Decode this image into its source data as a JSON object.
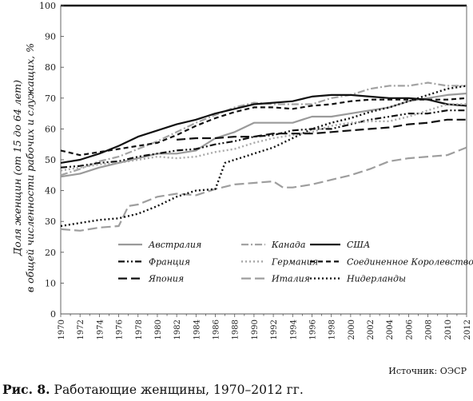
{
  "figure": {
    "caption_prefix": "Рис. 8.",
    "caption_text": "Работающие женщины, 1970–2012 гг.",
    "source": "Источник: ОЭСР"
  },
  "chart_data": {
    "type": "line",
    "ylabel_line1": "Доля женщин (от 15 до 64 лет)",
    "ylabel_line2": "в общей численности рабочих и служащих, %",
    "xlim": [
      1970,
      2012
    ],
    "ylim": [
      0,
      100
    ],
    "yticks": [
      0,
      10,
      20,
      30,
      40,
      50,
      60,
      70,
      80,
      90,
      100
    ],
    "xticks": [
      1970,
      1972,
      1974,
      1976,
      1978,
      1980,
      1982,
      1984,
      1986,
      1988,
      1990,
      1992,
      1994,
      1996,
      1998,
      2000,
      2002,
      2004,
      2006,
      2008,
      2010,
      2012
    ],
    "legend_position": "lower-center",
    "series": [
      {
        "name": "Австралия",
        "style": "solid-gray",
        "x": [
          1970,
          1972,
          1974,
          1976,
          1978,
          1980,
          1982,
          1984,
          1986,
          1988,
          1990,
          1992,
          1994,
          1996,
          1998,
          2000,
          2002,
          2004,
          2006,
          2008,
          2010,
          2012
        ],
        "y": [
          44.5,
          45.5,
          47.5,
          49,
          50.5,
          52,
          52,
          53,
          57,
          59,
          62,
          62,
          62,
          64,
          64,
          65,
          66,
          67,
          69,
          70,
          71,
          71.5
        ]
      },
      {
        "name": "Канада",
        "style": "dashdot-gray",
        "x": [
          1970,
          1972,
          1974,
          1976,
          1978,
          1980,
          1982,
          1984,
          1986,
          1988,
          1990,
          1992,
          1994,
          1996,
          1998,
          2000,
          2002,
          2004,
          2006,
          2008,
          2010,
          2012
        ],
        "y": [
          45,
          47,
          49.5,
          51,
          53.5,
          56,
          59,
          62,
          64.5,
          67,
          68.5,
          68,
          68,
          68,
          70,
          71,
          73,
          74,
          74,
          75,
          74,
          74
        ]
      },
      {
        "name": "США",
        "style": "solid-black",
        "x": [
          1970,
          1972,
          1974,
          1976,
          1978,
          1980,
          1982,
          1984,
          1986,
          1988,
          1990,
          1992,
          1994,
          1996,
          1998,
          2000,
          2002,
          2004,
          2006,
          2008,
          2010,
          2012
        ],
        "y": [
          49,
          50,
          52,
          54.5,
          57.5,
          59.5,
          61.5,
          63,
          65,
          66.5,
          68,
          68.5,
          69,
          70.5,
          71,
          71,
          70.5,
          70,
          70,
          69.5,
          68,
          67.5
        ]
      },
      {
        "name": "Франция",
        "style": "dashdotdot-black",
        "x": [
          1970,
          1972,
          1974,
          1976,
          1978,
          1980,
          1982,
          1984,
          1986,
          1988,
          1990,
          1992,
          1994,
          1996,
          1998,
          2000,
          2002,
          2004,
          2006,
          2008,
          2010,
          2012
        ],
        "y": [
          47.5,
          48,
          49,
          49.5,
          51,
          52,
          53,
          53.5,
          55,
          56,
          57.5,
          58,
          59.5,
          60,
          60,
          61.5,
          63,
          64,
          65,
          65,
          66,
          66
        ]
      },
      {
        "name": "Германия",
        "style": "dotted-gray",
        "x": [
          1970,
          1972,
          1974,
          1976,
          1978,
          1980,
          1982,
          1984,
          1986,
          1988,
          1990,
          1992,
          1994,
          1996,
          1998,
          2000,
          2002,
          2004,
          2006,
          2008,
          2010,
          2012
        ],
        "y": [
          46.5,
          47.5,
          48.5,
          49,
          50,
          51,
          50.5,
          51,
          52.5,
          53.5,
          55.5,
          57,
          58,
          59,
          61,
          62,
          62.5,
          62.5,
          64,
          66,
          68,
          68
        ]
      },
      {
        "name": "Соединенное Королевство",
        "style": "dashed-black",
        "x": [
          1970,
          1972,
          1974,
          1976,
          1978,
          1980,
          1982,
          1984,
          1986,
          1988,
          1990,
          1992,
          1994,
          1996,
          1998,
          2000,
          2002,
          2004,
          2006,
          2008,
          2010,
          2012
        ],
        "y": [
          53,
          51.5,
          52.5,
          53.5,
          54.5,
          55.5,
          58,
          61,
          63.5,
          65.5,
          67,
          67,
          66.5,
          67.5,
          68,
          69,
          69.5,
          69.5,
          69.5,
          69.5,
          69.5,
          70
        ]
      },
      {
        "name": "Япония",
        "style": "longdash-black",
        "x": [
          1982,
          1984,
          1986,
          1988,
          1990,
          1992,
          1994,
          1996,
          1998,
          2000,
          2002,
          2004,
          2006,
          2008,
          2010,
          2012
        ],
        "y": [
          56.5,
          57,
          57,
          57.5,
          57.5,
          58.5,
          58.5,
          58.5,
          59,
          59.5,
          60,
          60.5,
          61.5,
          62,
          63,
          63
        ]
      },
      {
        "name": "Италия",
        "style": "longdash-gray",
        "x": [
          1970,
          1972,
          1974,
          1976,
          1977,
          1978,
          1980,
          1982,
          1984,
          1986,
          1988,
          1990,
          1992,
          1993,
          1994,
          1996,
          1998,
          2000,
          2002,
          2004,
          2006,
          2008,
          2010,
          2012
        ],
        "y": [
          27.5,
          27,
          28,
          28.5,
          35,
          35.5,
          38,
          39,
          38.5,
          40.5,
          42,
          42.5,
          43,
          41,
          41,
          42,
          43.5,
          45,
          47,
          49.5,
          50.5,
          51,
          51.5,
          54
        ]
      },
      {
        "name": "Нидерланды",
        "style": "dotted-black",
        "x": [
          1970,
          1972,
          1974,
          1976,
          1978,
          1980,
          1982,
          1984,
          1986,
          1987,
          1988,
          1990,
          1992,
          1994,
          1996,
          1998,
          2000,
          2002,
          2004,
          2006,
          2008,
          2010,
          2012
        ],
        "y": [
          28.5,
          29.5,
          30.5,
          31,
          32.5,
          35,
          38,
          40,
          40.5,
          49,
          50,
          52,
          54,
          57,
          60,
          62,
          63.5,
          65.5,
          67,
          69,
          71,
          73,
          74
        ]
      }
    ]
  }
}
